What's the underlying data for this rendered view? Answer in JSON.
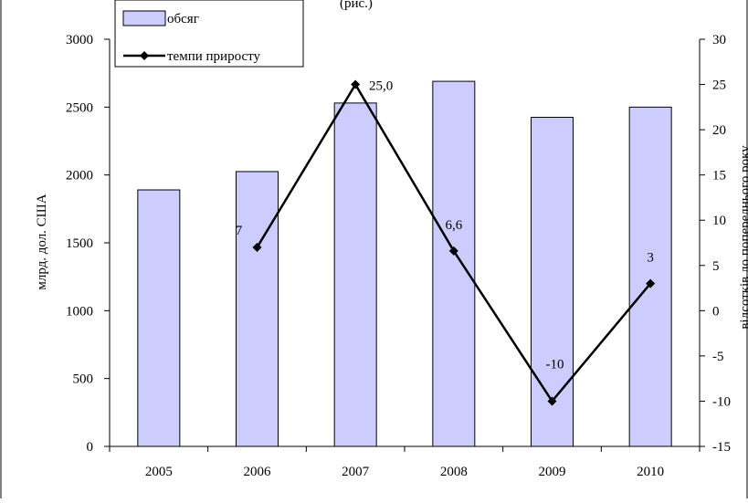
{
  "caption_fragment": "(рис.)",
  "chart_data": {
    "type": "bar",
    "categories": [
      "2005",
      "2006",
      "2007",
      "2008",
      "2009",
      "2010"
    ],
    "series": [
      {
        "name": "обсяг",
        "type": "bar",
        "axis": "left",
        "color": "#ccccff",
        "values": [
          1890,
          2025,
          2530,
          2690,
          2425,
          2500
        ]
      },
      {
        "name": "темпи приросту",
        "type": "line",
        "axis": "right",
        "color": "#000000",
        "values": [
          null,
          7,
          25,
          6.6,
          -10,
          3
        ],
        "labels": [
          "",
          "7",
          "25,0",
          "6,6",
          "-10",
          "3"
        ]
      }
    ],
    "ylabel": "млрд. дол. США",
    "y2label": "відсотків до попереднього року",
    "ylim": [
      0,
      3000
    ],
    "y2lim": [
      -15,
      30
    ],
    "yticks": [
      "0",
      "500",
      "1000",
      "1500",
      "2000",
      "2500",
      "3000"
    ],
    "y2ticks": [
      "-15",
      "-10",
      "-5",
      "0",
      "5",
      "10",
      "15",
      "20",
      "25",
      "30"
    ],
    "grid": false,
    "legend": "top-left"
  }
}
